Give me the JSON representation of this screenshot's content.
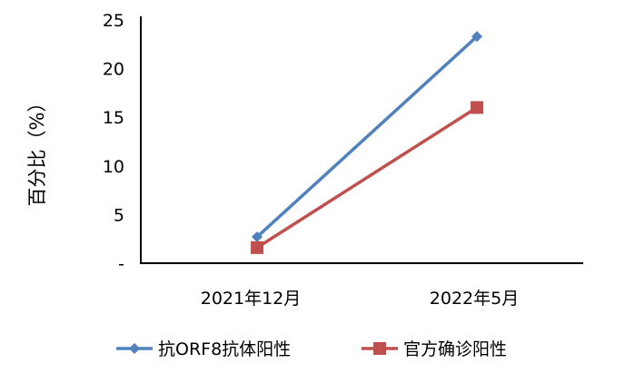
{
  "chart_data": {
    "type": "line",
    "title": "",
    "xlabel": "",
    "ylabel": "百分比（%）",
    "categories": [
      "2021年12月",
      "2022年5月"
    ],
    "ylim": [
      0,
      25
    ],
    "yticks": [
      0,
      5,
      10,
      15,
      20,
      25
    ],
    "ytick_labels": [
      "-",
      "5",
      "10",
      "15",
      "20",
      "25"
    ],
    "grid": false,
    "legend_position": "bottom",
    "series": [
      {
        "name": "抗ORF8抗体阳性",
        "values": [
          2.7,
          23.3
        ],
        "color": "#4f81bd",
        "marker": "diamond"
      },
      {
        "name": "官方确诊阳性",
        "values": [
          1.6,
          16.0
        ],
        "color": "#c0504d",
        "marker": "square"
      }
    ]
  }
}
